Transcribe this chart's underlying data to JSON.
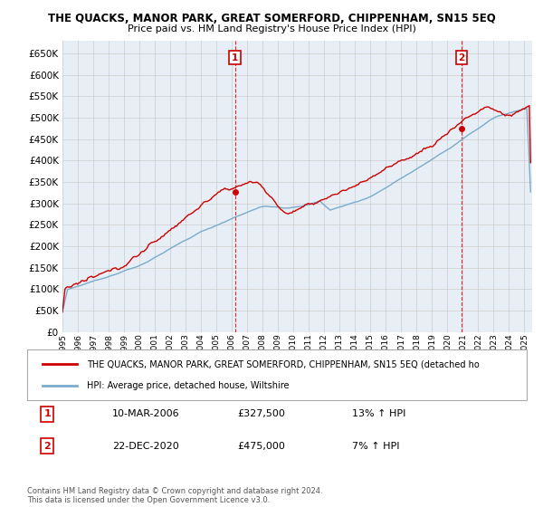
{
  "title": "THE QUACKS, MANOR PARK, GREAT SOMERFORD, CHIPPENHAM, SN15 5EQ",
  "subtitle": "Price paid vs. HM Land Registry's House Price Index (HPI)",
  "ylim": [
    0,
    680000
  ],
  "yticks": [
    0,
    50000,
    100000,
    150000,
    200000,
    250000,
    300000,
    350000,
    400000,
    450000,
    500000,
    550000,
    600000,
    650000
  ],
  "red_color": "#cc0000",
  "blue_color": "#7aabcc",
  "grid_color": "#cccccc",
  "bg_color": "#e8eef5",
  "legend_entry1": "THE QUACKS, MANOR PARK, GREAT SOMERFORD, CHIPPENHAM, SN15 5EQ (detached ho",
  "legend_entry2": "HPI: Average price, detached house, Wiltshire",
  "annotation1_label": "1",
  "annotation1_date": "10-MAR-2006",
  "annotation1_price": "£327,500",
  "annotation1_hpi": "13% ↑ HPI",
  "annotation2_label": "2",
  "annotation2_date": "22-DEC-2020",
  "annotation2_price": "£475,000",
  "annotation2_hpi": "7% ↑ HPI",
  "footer": "Contains HM Land Registry data © Crown copyright and database right 2024.\nThis data is licensed under the Open Government Licence v3.0.",
  "x_start_year": 1995,
  "x_end_year": 2025,
  "t1": 2006.2,
  "t2": 2020.92,
  "p1": 327500,
  "p2": 475000
}
